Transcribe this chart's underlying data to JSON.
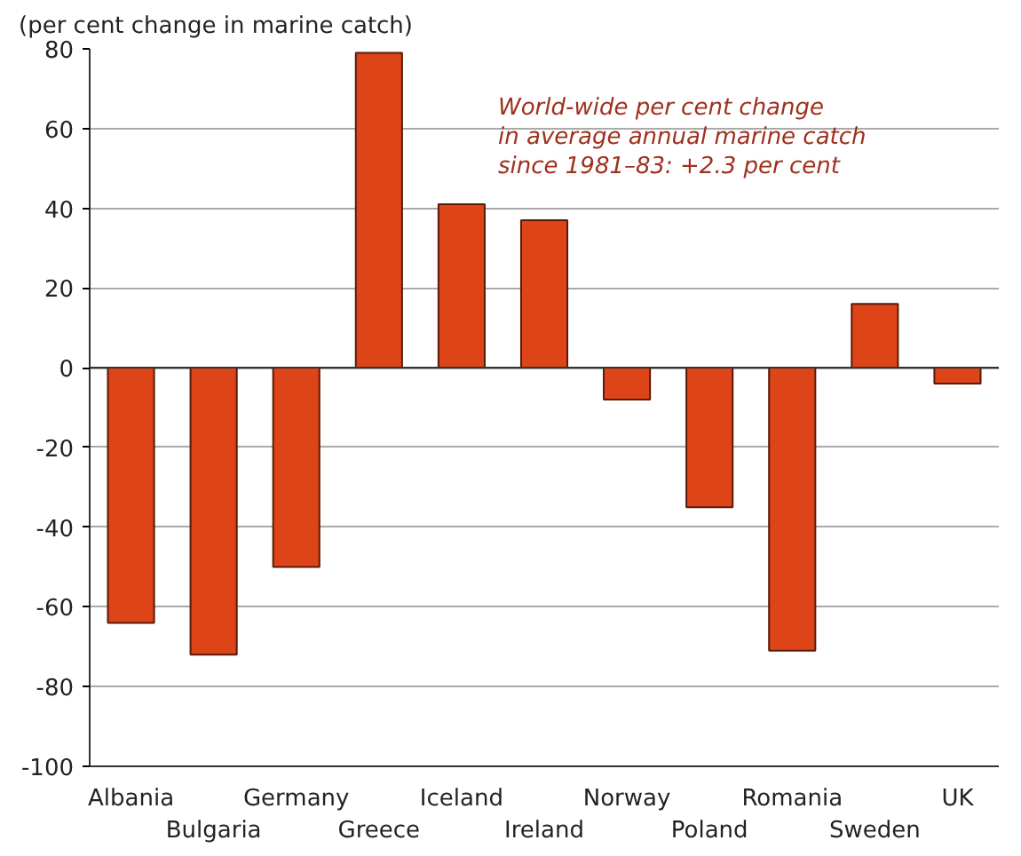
{
  "chart_data": {
    "type": "bar",
    "ylabel": "(per cent change in marine catch)",
    "annotations": [
      "World-wide per cent change\nin average annual marine catch\nsince 1981–83: +2.3 per cent"
    ],
    "categories": [
      "Albania",
      "Bulgaria",
      "Germany",
      "Greece",
      "Iceland",
      "Ireland",
      "Norway",
      "Poland",
      "Romania",
      "Sweden",
      "UK"
    ],
    "values": [
      -64,
      -72,
      -50,
      79,
      41,
      37,
      -8,
      -35,
      -71,
      16,
      -4
    ],
    "color": "#dd4418",
    "ylim": [
      -100,
      80
    ],
    "yticks": [
      -100,
      -80,
      -60,
      -40,
      -20,
      0,
      20,
      40,
      60,
      80
    ],
    "grid": "y"
  }
}
